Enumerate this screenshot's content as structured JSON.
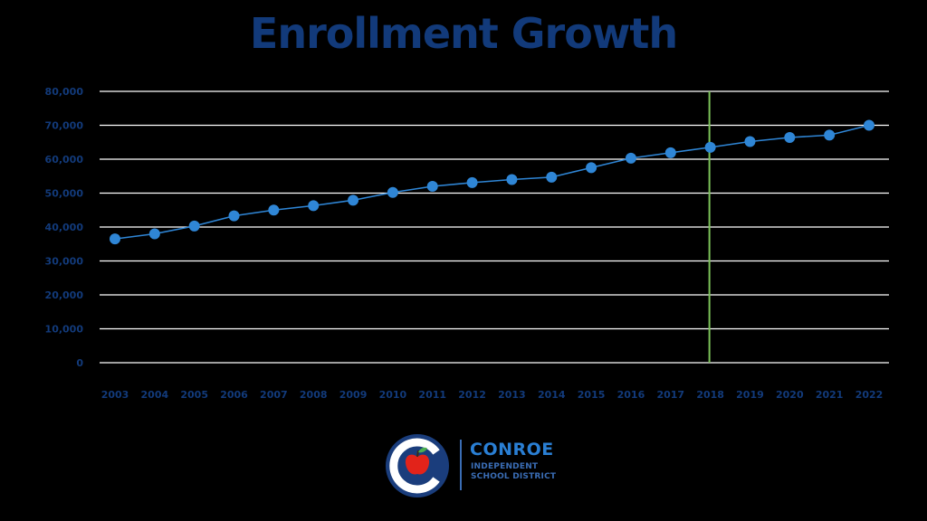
{
  "chart_data": {
    "type": "line",
    "title": "Enrollment Growth",
    "xlabel": "",
    "ylabel": "",
    "categories": [
      "2003",
      "2004",
      "2005",
      "2006",
      "2007",
      "2008",
      "2009",
      "2010",
      "2011",
      "2012",
      "2013",
      "2014",
      "2015",
      "2016",
      "2017",
      "2018",
      "2019",
      "2020",
      "2021",
      "2022"
    ],
    "values": [
      36500,
      38000,
      40300,
      43300,
      45000,
      46300,
      47900,
      50200,
      52000,
      53100,
      54000,
      54700,
      57500,
      60300,
      61900,
      63500,
      65200,
      66400,
      67100,
      70000
    ],
    "yticks": [
      "0",
      "10,000",
      "20,000",
      "30,000",
      "40,000",
      "50,000",
      "60,000",
      "70,000",
      "80,000"
    ],
    "ylim": [
      0,
      80000
    ],
    "grid": true,
    "marker_year": "2018",
    "colors": {
      "line": "#2f86d6",
      "marker": "#2f86d6",
      "grid": "#ffffff",
      "reference_line": "#7cc35a",
      "text": "#123a7a"
    }
  },
  "logo": {
    "name": "CONROE",
    "subtitle_line1": "INDEPENDENT",
    "subtitle_line2": "SCHOOL DISTRICT",
    "colors": {
      "circle": "#1a3d7c",
      "apple": "#e2231a",
      "leaf": "#4caf50"
    }
  }
}
